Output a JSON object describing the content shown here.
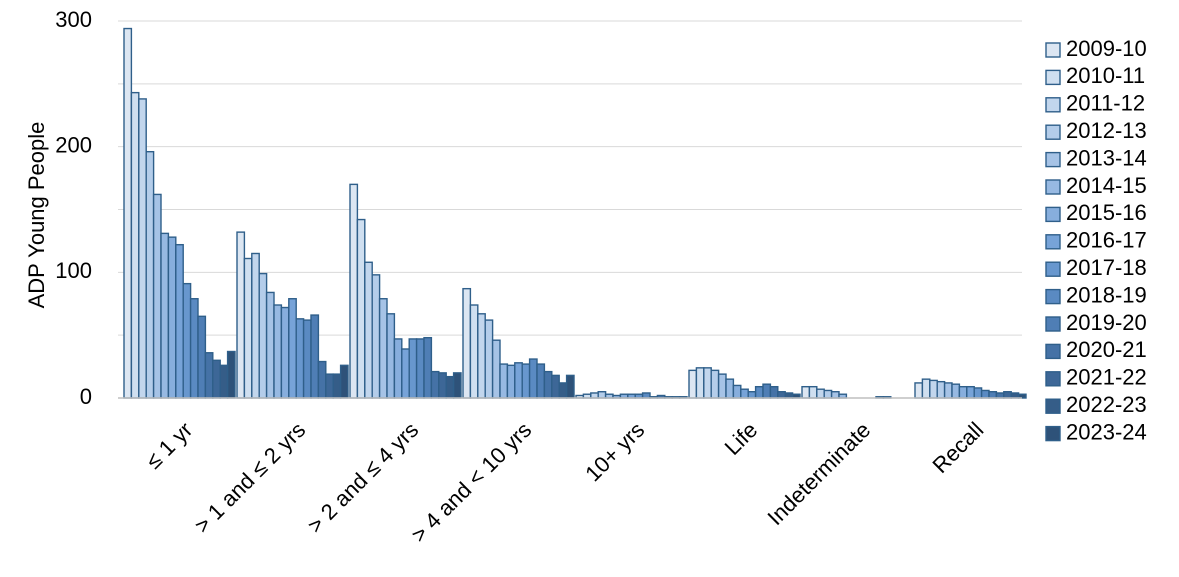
{
  "chart_data": {
    "type": "bar",
    "title": "",
    "xlabel": "",
    "ylabel": "ADP Young People",
    "ylim": [
      0,
      300
    ],
    "yticks": [
      0,
      100,
      200,
      300
    ],
    "grid": true,
    "legend_position": "right",
    "categories": [
      "≤ 1 yr",
      "> 1 and ≤ 2 yrs",
      "> 2 and ≤ 4 yrs",
      "> 4 and < 10 yrs",
      "10+ yrs",
      "Life",
      "Indeterminate",
      "Recall"
    ],
    "series": [
      {
        "name": "2009-10",
        "color": "#dce6f2",
        "values": [
          294,
          132,
          170,
          87,
          2,
          22,
          9,
          12
        ]
      },
      {
        "name": "2010-11",
        "color": "#cfdff0",
        "values": [
          243,
          111,
          142,
          74,
          3,
          24,
          9,
          15
        ]
      },
      {
        "name": "2011-12",
        "color": "#c2d6ed",
        "values": [
          238,
          115,
          108,
          67,
          4,
          24,
          7,
          14
        ]
      },
      {
        "name": "2012-13",
        "color": "#b4cdea",
        "values": [
          196,
          99,
          98,
          62,
          5,
          22,
          6,
          13
        ]
      },
      {
        "name": "2013-14",
        "color": "#a6c3e6",
        "values": [
          162,
          84,
          79,
          46,
          3,
          19,
          5,
          12
        ]
      },
      {
        "name": "2014-15",
        "color": "#97b9e2",
        "values": [
          131,
          74,
          67,
          27,
          2,
          15,
          3,
          11
        ]
      },
      {
        "name": "2015-16",
        "color": "#87aedd",
        "values": [
          128,
          72,
          47,
          26,
          3,
          10,
          0,
          9
        ]
      },
      {
        "name": "2016-17",
        "color": "#77a3d8",
        "values": [
          122,
          79,
          39,
          28,
          3,
          7,
          0,
          9
        ]
      },
      {
        "name": "2017-18",
        "color": "#6897ce",
        "values": [
          91,
          63,
          47,
          27,
          3,
          5,
          0,
          8
        ]
      },
      {
        "name": "2018-19",
        "color": "#5a8ac2",
        "values": [
          79,
          62,
          47,
          31,
          4,
          9,
          0,
          6
        ]
      },
      {
        "name": "2019-20",
        "color": "#4f7eb5",
        "values": [
          65,
          66,
          48,
          27,
          1,
          11,
          1,
          5
        ]
      },
      {
        "name": "2020-21",
        "color": "#4572a6",
        "values": [
          36,
          29,
          21,
          21,
          2,
          9,
          1,
          4
        ]
      },
      {
        "name": "2021-22",
        "color": "#3d6797",
        "values": [
          30,
          19,
          20,
          18,
          1,
          5,
          0,
          5
        ]
      },
      {
        "name": "2022-23",
        "color": "#355d88",
        "values": [
          26,
          19,
          17,
          12,
          1,
          4,
          0,
          4
        ]
      },
      {
        "name": "2023-24",
        "color": "#2e5279",
        "values": [
          37,
          26,
          20,
          18,
          1,
          3,
          0,
          3
        ]
      }
    ]
  }
}
